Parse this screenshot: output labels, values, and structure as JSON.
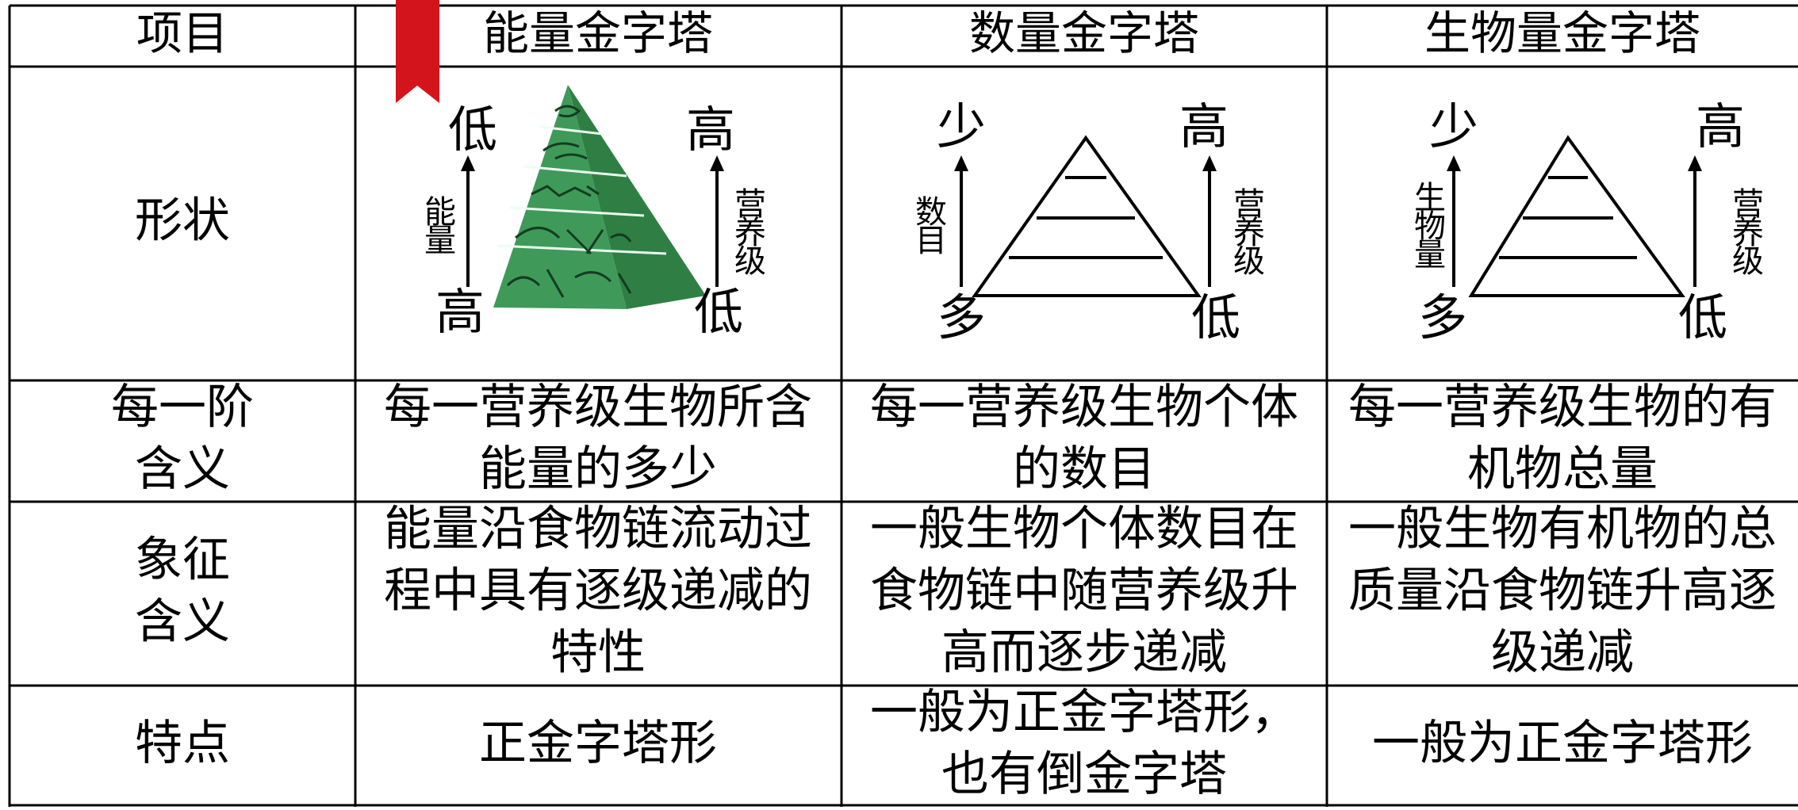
{
  "table": {
    "header": [
      "项目",
      "能量金字塔",
      "数量金字塔",
      "生物量金字塔"
    ],
    "shape_row": {
      "label": "形状",
      "diagrams": [
        {
          "top_left": "低",
          "left_axis": "能量",
          "bottom_left": "高",
          "top_right": "高",
          "right_axis": "营养级",
          "bottom_right": "低"
        },
        {
          "top_left": "少",
          "left_axis": "数目",
          "bottom_left": "多",
          "top_right": "高",
          "right_axis": "营养级",
          "bottom_right": "低"
        },
        {
          "top_left": "少",
          "left_axis": "生物量",
          "bottom_left": "多",
          "top_right": "高",
          "right_axis": "营养级",
          "bottom_right": "低"
        }
      ]
    },
    "rows": [
      [
        [
          "每一阶",
          "含义"
        ],
        [
          "每一营养级生物所含",
          "能量的多少"
        ],
        [
          "每一营养级生物个体",
          "的数目"
        ],
        [
          "每一营养级生物的有",
          "机物总量"
        ]
      ],
      [
        [
          "象征",
          "含义"
        ],
        [
          "能量沿食物链流动过",
          "程中具有逐级递减的",
          "特性"
        ],
        [
          "一般生物个体数目在",
          "食物链中随营养级升",
          "高而逐步递减"
        ],
        [
          "一般生物有机物的总",
          "质量沿食物链升高逐",
          "级递减"
        ]
      ],
      [
        [
          "特点"
        ],
        [
          "正金字塔形"
        ],
        [
          "一般为正金字塔形，",
          "也有倒金字塔"
        ],
        [
          "一般为正金字塔形"
        ]
      ]
    ]
  }
}
